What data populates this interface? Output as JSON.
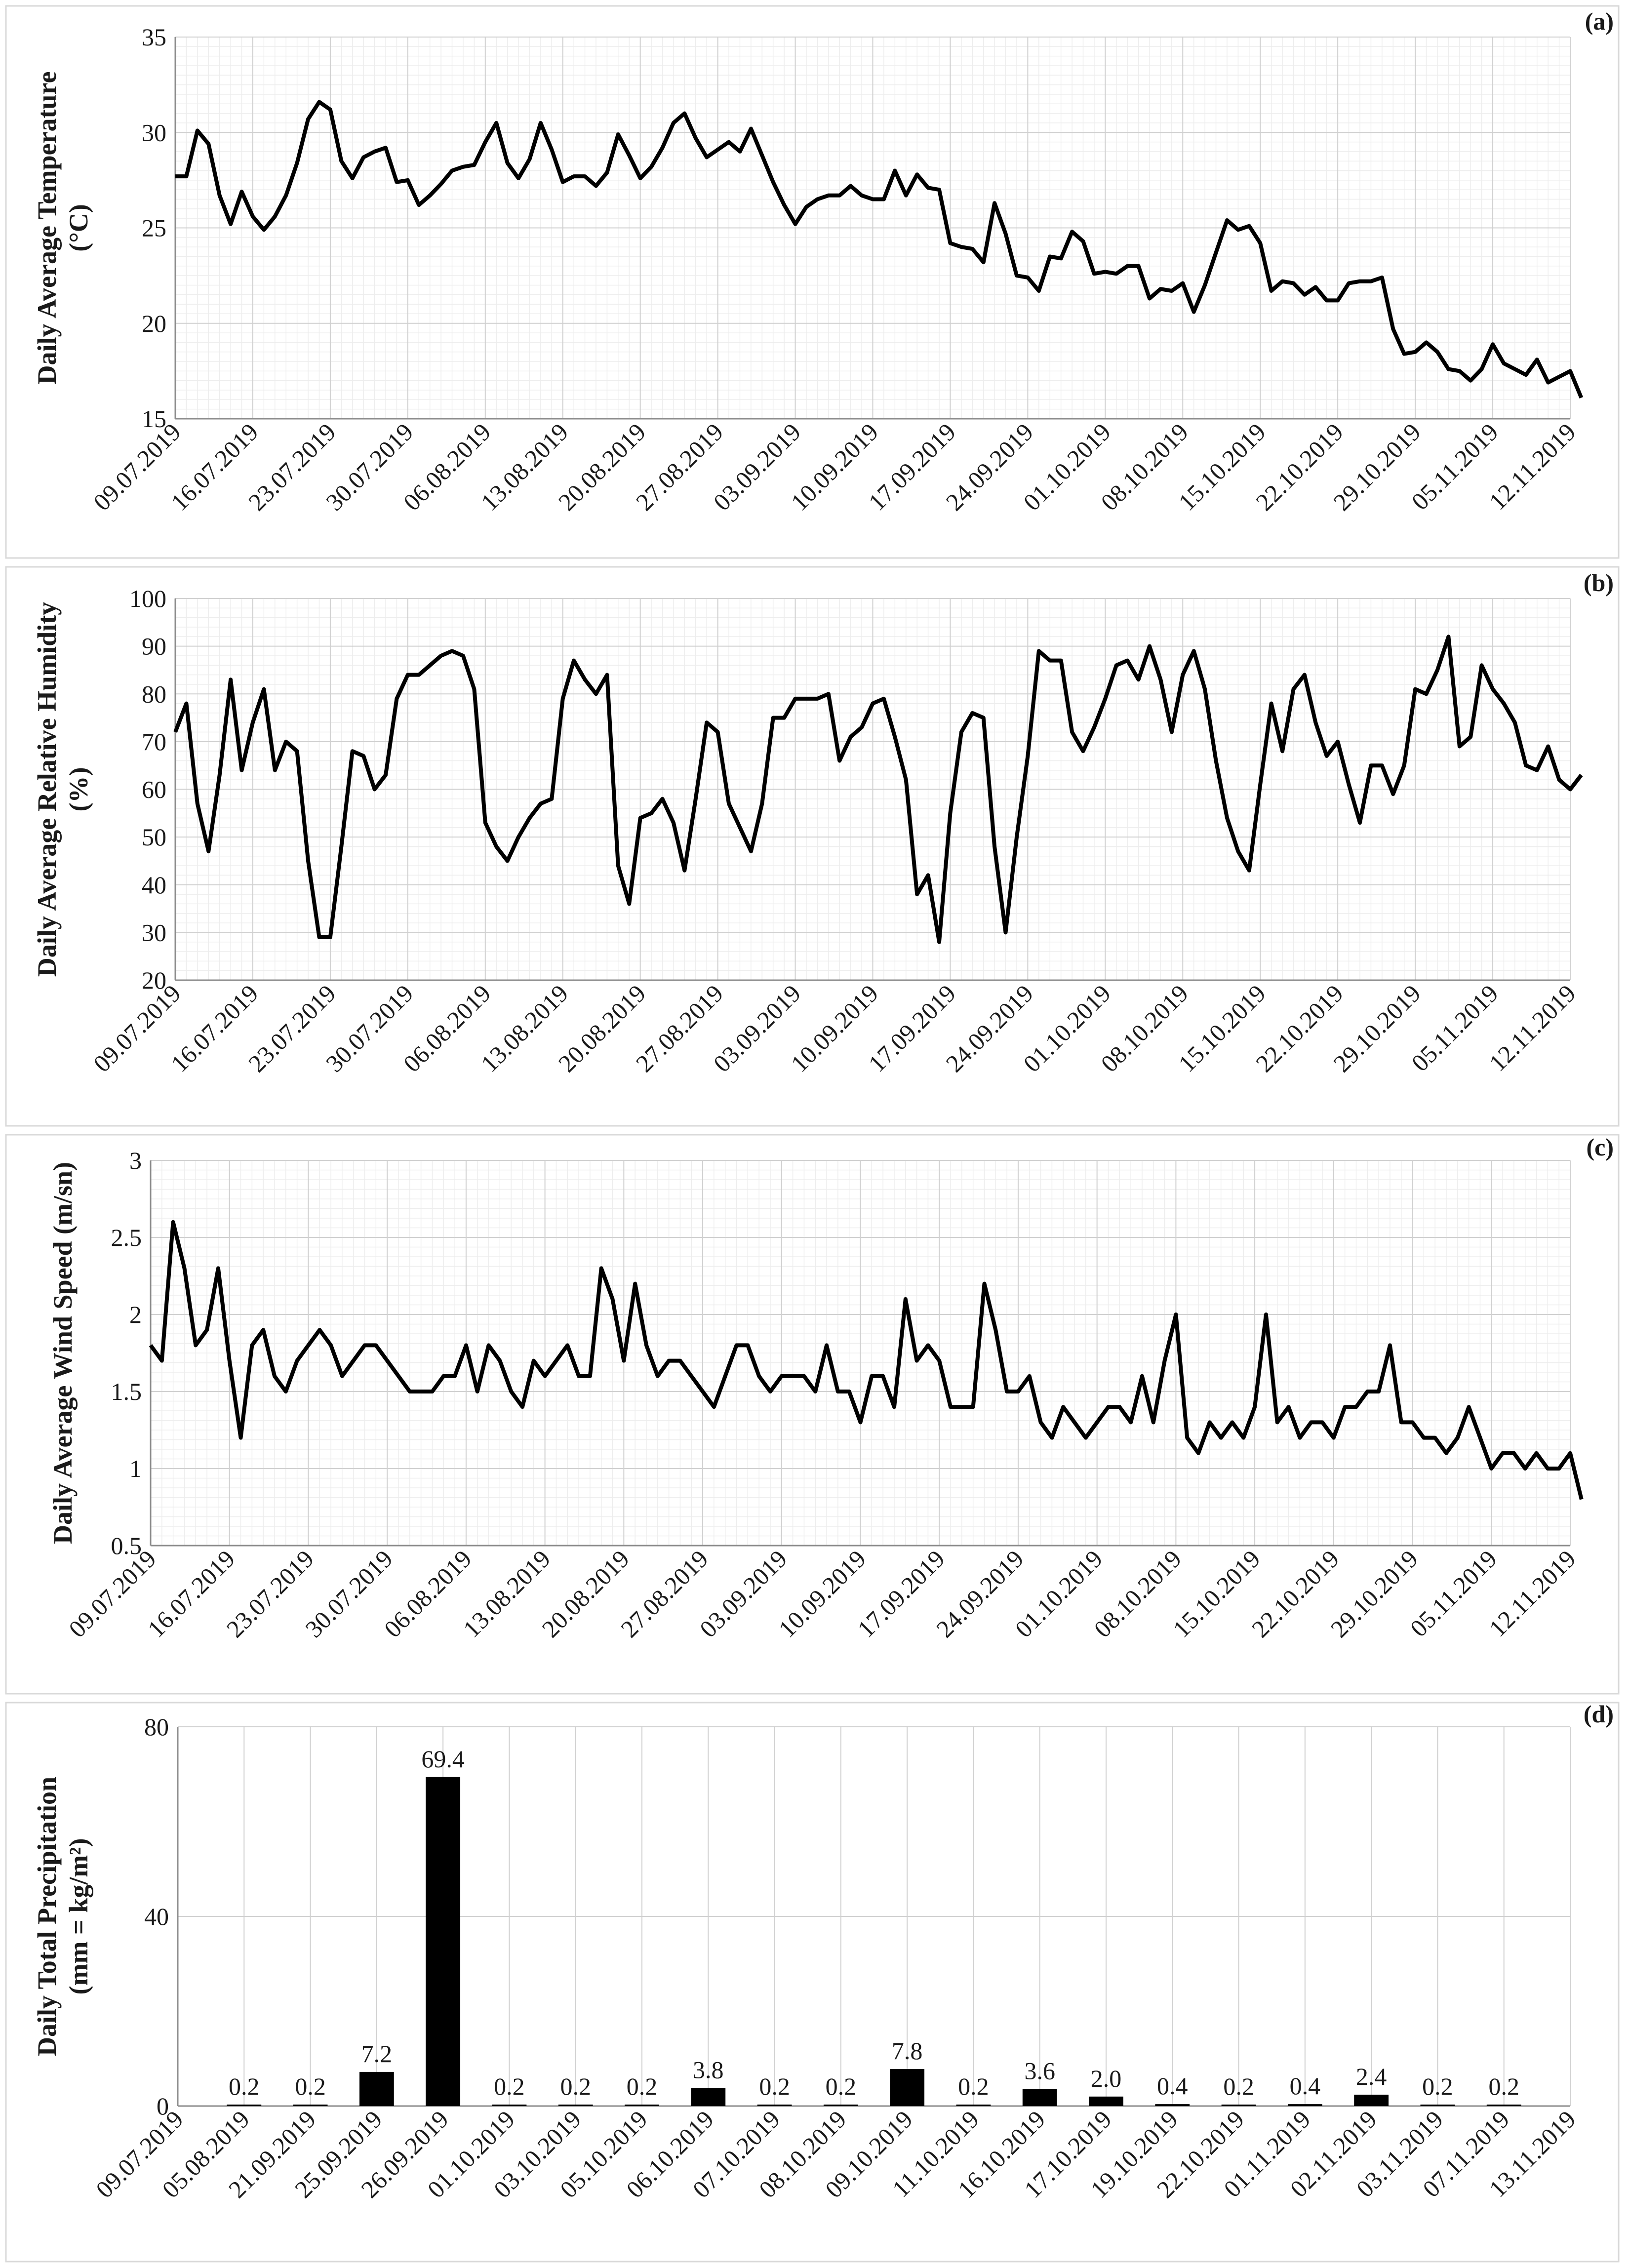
{
  "chart_data": [
    {
      "type": "line",
      "panel_label": "(a)",
      "ylabel_lines": [
        "Daily Average Temperature",
        "(°C)"
      ],
      "ylim": [
        15,
        35
      ],
      "yticks": [
        15,
        20,
        25,
        30,
        35
      ],
      "x_tick_labels": [
        "09.07.2019",
        "16.07.2019",
        "23.07.2019",
        "30.07.2019",
        "06.08.2019",
        "13.08.2019",
        "20.08.2019",
        "27.08.2019",
        "03.09.2019",
        "10.09.2019",
        "17.09.2019",
        "24.09.2019",
        "01.10.2019",
        "08.10.2019",
        "15.10.2019",
        "22.10.2019",
        "29.10.2019",
        "05.11.2019",
        "12.11.2019"
      ],
      "days": 127,
      "values": [
        27.7,
        27.7,
        30.1,
        29.4,
        26.7,
        25.2,
        26.9,
        25.6,
        24.9,
        25.6,
        26.7,
        28.4,
        30.7,
        31.6,
        31.2,
        28.5,
        27.6,
        28.7,
        29.0,
        29.2,
        27.4,
        27.5,
        26.2,
        26.7,
        27.3,
        28.0,
        28.2,
        28.3,
        29.5,
        30.5,
        28.4,
        27.6,
        28.6,
        30.5,
        29.1,
        27.4,
        27.7,
        27.7,
        27.2,
        27.9,
        29.9,
        28.8,
        27.6,
        28.2,
        29.2,
        30.5,
        31.0,
        29.7,
        28.7,
        29.1,
        29.5,
        29.0,
        30.2,
        28.8,
        27.4,
        26.2,
        25.2,
        26.1,
        26.5,
        26.7,
        26.7,
        27.2,
        26.7,
        26.5,
        26.5,
        28.0,
        26.7,
        27.8,
        27.1,
        27.0,
        24.2,
        24.0,
        23.9,
        23.2,
        26.3,
        24.7,
        22.5,
        22.4,
        21.7,
        23.5,
        23.4,
        24.8,
        24.3,
        22.6,
        22.7,
        22.6,
        23.0,
        23.0,
        21.3,
        21.8,
        21.7,
        22.1,
        20.6,
        22.0,
        23.7,
        25.4,
        24.9,
        25.1,
        24.2,
        21.7,
        22.2,
        22.1,
        21.5,
        21.9,
        21.2,
        21.2,
        22.1,
        22.2,
        22.2,
        22.4,
        19.7,
        18.4,
        18.5,
        19.0,
        18.5,
        17.6,
        17.5,
        17.0,
        17.6,
        18.9,
        17.9,
        17.6,
        17.3,
        18.1,
        16.9,
        17.2,
        17.5,
        16.1
      ]
    },
    {
      "type": "line",
      "panel_label": "(b)",
      "ylabel_lines": [
        "Daily Average Relative Humidity",
        "(%)"
      ],
      "ylim": [
        20,
        100
      ],
      "yticks": [
        20,
        30,
        40,
        50,
        60,
        70,
        80,
        90,
        100
      ],
      "x_tick_labels": [
        "09.07.2019",
        "16.07.2019",
        "23.07.2019",
        "30.07.2019",
        "06.08.2019",
        "13.08.2019",
        "20.08.2019",
        "27.08.2019",
        "03.09.2019",
        "10.09.2019",
        "17.09.2019",
        "24.09.2019",
        "01.10.2019",
        "08.10.2019",
        "15.10.2019",
        "22.10.2019",
        "29.10.2019",
        "05.11.2019",
        "12.11.2019"
      ],
      "days": 127,
      "values": [
        72,
        78,
        57,
        47,
        63,
        83,
        64,
        74,
        81,
        64,
        70,
        68,
        45,
        29,
        29,
        48,
        68,
        67,
        60,
        63,
        79,
        84,
        84,
        86,
        88,
        89,
        88,
        81,
        53,
        48,
        45,
        50,
        54,
        57,
        58,
        79,
        87,
        83,
        80,
        84,
        44,
        36,
        54,
        55,
        58,
        53,
        43,
        58,
        74,
        72,
        57,
        52,
        47,
        57,
        75,
        75,
        79,
        79,
        79,
        80,
        66,
        71,
        73,
        78,
        79,
        71,
        62,
        38,
        42,
        28,
        55,
        72,
        76,
        75,
        48,
        30,
        50,
        67,
        89,
        87,
        87,
        72,
        68,
        73,
        79,
        86,
        87,
        83,
        90,
        83,
        72,
        84,
        89,
        81,
        66,
        54,
        47,
        43,
        61,
        78,
        68,
        81,
        84,
        74,
        67,
        70,
        61,
        53,
        65,
        65,
        59,
        65,
        81,
        80,
        85,
        92,
        69,
        71,
        86,
        81,
        78,
        74,
        65,
        64,
        69,
        62,
        60,
        63
      ]
    },
    {
      "type": "line",
      "panel_label": "(c)",
      "ylabel_lines": [
        "Daily Average Wind Speed (m/sn)"
      ],
      "ylim": [
        0.5,
        3
      ],
      "yticks": [
        "0.5",
        "1",
        "1.5",
        "2",
        "2.5",
        "3"
      ],
      "x_tick_labels": [
        "09.07.2019",
        "16.07.2019",
        "23.07.2019",
        "30.07.2019",
        "06.08.2019",
        "13.08.2019",
        "20.08.2019",
        "27.08.2019",
        "03.09.2019",
        "10.09.2019",
        "17.09.2019",
        "24.09.2019",
        "01.10.2019",
        "08.10.2019",
        "15.10.2019",
        "22.10.2019",
        "29.10.2019",
        "05.11.2019",
        "12.11.2019"
      ],
      "days": 127,
      "values": [
        1.8,
        1.7,
        2.6,
        2.3,
        1.8,
        1.9,
        2.3,
        1.7,
        1.2,
        1.8,
        1.9,
        1.6,
        1.5,
        1.7,
        1.8,
        1.9,
        1.8,
        1.6,
        1.7,
        1.8,
        1.8,
        1.7,
        1.6,
        1.5,
        1.5,
        1.5,
        1.6,
        1.6,
        1.8,
        1.5,
        1.8,
        1.7,
        1.5,
        1.4,
        1.7,
        1.6,
        1.7,
        1.8,
        1.6,
        1.6,
        2.3,
        2.1,
        1.7,
        2.2,
        1.8,
        1.6,
        1.7,
        1.7,
        1.6,
        1.5,
        1.4,
        1.6,
        1.8,
        1.8,
        1.6,
        1.5,
        1.6,
        1.6,
        1.6,
        1.5,
        1.8,
        1.5,
        1.5,
        1.3,
        1.6,
        1.6,
        1.4,
        2.1,
        1.7,
        1.8,
        1.7,
        1.4,
        1.4,
        1.4,
        2.2,
        1.9,
        1.5,
        1.5,
        1.6,
        1.3,
        1.2,
        1.4,
        1.3,
        1.2,
        1.3,
        1.4,
        1.4,
        1.3,
        1.6,
        1.3,
        1.7,
        2.0,
        1.2,
        1.1,
        1.3,
        1.2,
        1.3,
        1.2,
        1.4,
        2.0,
        1.3,
        1.4,
        1.2,
        1.3,
        1.3,
        1.2,
        1.4,
        1.4,
        1.5,
        1.5,
        1.8,
        1.3,
        1.3,
        1.2,
        1.2,
        1.1,
        1.2,
        1.4,
        1.2,
        1.0,
        1.1,
        1.1,
        1.0,
        1.1,
        1.0,
        1.0,
        1.1,
        0.8
      ]
    },
    {
      "type": "bar",
      "panel_label": "(d)",
      "ylabel_lines": [
        "Daily Total Precipitation",
        "(mm = kg/m²)"
      ],
      "ylim": [
        0,
        80
      ],
      "yticks": [
        0,
        40,
        80
      ],
      "categories": [
        "09.07.2019",
        "05.08.2019",
        "21.09.2019",
        "25.09.2019",
        "26.09.2019",
        "01.10.2019",
        "03.10.2019",
        "05.10.2019",
        "06.10.2019",
        "07.10.2019",
        "08.10.2019",
        "09.10.2019",
        "11.10.2019",
        "16.10.2019",
        "17.10.2019",
        "19.10.2019",
        "22.10.2019",
        "01.11.2019",
        "02.11.2019",
        "03.11.2019",
        "07.11.2019",
        "13.11.2019"
      ],
      "values": [
        null,
        0.2,
        0.2,
        7.2,
        69.4,
        0.2,
        0.2,
        0.2,
        3.8,
        0.2,
        0.2,
        7.8,
        0.2,
        3.6,
        2.0,
        0.4,
        0.2,
        0.4,
        2.4,
        0.2,
        0.2,
        null
      ],
      "value_labels": [
        "",
        "0.2",
        "0.2",
        "7.2",
        "69.4",
        "0.2",
        "0.2",
        "0.2",
        "3.8",
        "0.2",
        "0.2",
        "7.8",
        "0.2",
        "3.6",
        "2.0",
        "0.4",
        "0.2",
        "0.4",
        "2.4",
        "0.2",
        "0.2",
        ""
      ]
    }
  ]
}
